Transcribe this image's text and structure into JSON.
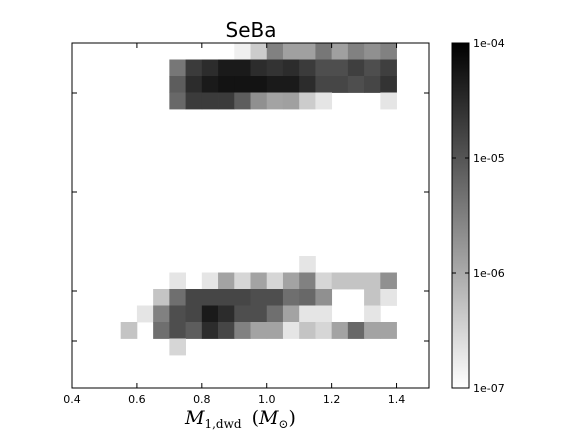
{
  "chart_data": {
    "type": "heatmap",
    "title": "SeBa",
    "xlabel": {
      "main": "M",
      "sub": "1,dwd",
      "unit_main": "M",
      "unit_sub": "⊙"
    },
    "ylabel": "",
    "xlim": [
      0.4,
      1.5
    ],
    "x_ticks": [
      0.4,
      0.6,
      0.8,
      1.0,
      1.2,
      1.4
    ],
    "x_tick_labels": [
      "0.4",
      "0.6",
      "0.8",
      "1.0",
      "1.2",
      "1.4"
    ],
    "bin_width": 0.05,
    "colorbar": {
      "scale": "log",
      "min": 1e-07,
      "max": 0.0001,
      "ticks": [
        1e-07,
        1e-06,
        1e-05,
        0.0001
      ],
      "tick_labels": [
        "1e-07",
        "1e-06",
        "1e-05",
        "1e-04"
      ],
      "low_color": "#ffffff",
      "high_color": "#000000"
    },
    "cells": [
      {
        "x0": 0.9,
        "row": 0,
        "v": 1.5e-07
      },
      {
        "x0": 0.95,
        "row": 0,
        "v": 4e-07
      },
      {
        "x0": 1.0,
        "row": 0,
        "v": 3e-06
      },
      {
        "x0": 1.05,
        "row": 0,
        "v": 1.3e-06
      },
      {
        "x0": 1.1,
        "row": 0,
        "v": 1.3e-06
      },
      {
        "x0": 1.15,
        "row": 0,
        "v": 4e-06
      },
      {
        "x0": 1.2,
        "row": 0,
        "v": 1.3e-06
      },
      {
        "x0": 1.25,
        "row": 0,
        "v": 3e-06
      },
      {
        "x0": 1.3,
        "row": 0,
        "v": 2e-06
      },
      {
        "x0": 1.35,
        "row": 0,
        "v": 3e-06
      },
      {
        "x0": 0.7,
        "row": 1,
        "v": 4e-06
      },
      {
        "x0": 0.75,
        "row": 1,
        "v": 2e-05
      },
      {
        "x0": 0.8,
        "row": 1,
        "v": 3e-05
      },
      {
        "x0": 0.85,
        "row": 1,
        "v": 5e-05
      },
      {
        "x0": 0.9,
        "row": 1,
        "v": 5e-05
      },
      {
        "x0": 0.95,
        "row": 1,
        "v": 3e-05
      },
      {
        "x0": 1.0,
        "row": 1,
        "v": 2.5e-05
      },
      {
        "x0": 1.05,
        "row": 1,
        "v": 3e-05
      },
      {
        "x0": 1.1,
        "row": 1,
        "v": 2e-05
      },
      {
        "x0": 1.15,
        "row": 1,
        "v": 1.2e-05
      },
      {
        "x0": 1.2,
        "row": 1,
        "v": 1.2e-05
      },
      {
        "x0": 1.25,
        "row": 1,
        "v": 1.8e-05
      },
      {
        "x0": 1.3,
        "row": 1,
        "v": 1.2e-05
      },
      {
        "x0": 1.35,
        "row": 1,
        "v": 1.8e-05
      },
      {
        "x0": 0.7,
        "row": 2,
        "v": 8e-06
      },
      {
        "x0": 0.75,
        "row": 2,
        "v": 3e-05
      },
      {
        "x0": 0.8,
        "row": 2,
        "v": 5e-05
      },
      {
        "x0": 0.85,
        "row": 2,
        "v": 6e-05
      },
      {
        "x0": 0.9,
        "row": 2,
        "v": 6e-05
      },
      {
        "x0": 0.95,
        "row": 2,
        "v": 6e-05
      },
      {
        "x0": 1.0,
        "row": 2,
        "v": 5e-05
      },
      {
        "x0": 1.05,
        "row": 2,
        "v": 5e-05
      },
      {
        "x0": 1.1,
        "row": 2,
        "v": 3e-05
      },
      {
        "x0": 1.15,
        "row": 2,
        "v": 1.5e-05
      },
      {
        "x0": 1.2,
        "row": 2,
        "v": 1.5e-05
      },
      {
        "x0": 1.25,
        "row": 2,
        "v": 1.2e-05
      },
      {
        "x0": 1.3,
        "row": 2,
        "v": 1.5e-05
      },
      {
        "x0": 1.35,
        "row": 2,
        "v": 2.5e-05
      },
      {
        "x0": 0.7,
        "row": 3,
        "v": 6e-06
      },
      {
        "x0": 0.75,
        "row": 3,
        "v": 2e-05
      },
      {
        "x0": 0.8,
        "row": 3,
        "v": 2e-05
      },
      {
        "x0": 0.85,
        "row": 3,
        "v": 2e-05
      },
      {
        "x0": 0.9,
        "row": 3,
        "v": 8e-06
      },
      {
        "x0": 0.95,
        "row": 3,
        "v": 2e-06
      },
      {
        "x0": 1.0,
        "row": 3,
        "v": 1.2e-06
      },
      {
        "x0": 1.05,
        "row": 3,
        "v": 1.3e-06
      },
      {
        "x0": 1.1,
        "row": 3,
        "v": 4e-07
      },
      {
        "x0": 1.15,
        "row": 3,
        "v": 2e-07
      },
      {
        "x0": 1.35,
        "row": 3,
        "v": 2e-07
      },
      {
        "x0": 1.1,
        "row": 4,
        "v": 2e-07
      },
      {
        "x0": 0.7,
        "row": 5,
        "v": 2e-07
      },
      {
        "x0": 0.8,
        "row": 5,
        "v": 2e-07
      },
      {
        "x0": 0.85,
        "row": 5,
        "v": 1.2e-06
      },
      {
        "x0": 0.9,
        "row": 5,
        "v": 3e-07
      },
      {
        "x0": 0.95,
        "row": 5,
        "v": 1.2e-06
      },
      {
        "x0": 1.0,
        "row": 5,
        "v": 3e-07
      },
      {
        "x0": 1.05,
        "row": 5,
        "v": 1.2e-06
      },
      {
        "x0": 1.1,
        "row": 5,
        "v": 3e-06
      },
      {
        "x0": 1.15,
        "row": 5,
        "v": 3e-07
      },
      {
        "x0": 1.2,
        "row": 5,
        "v": 5e-07
      },
      {
        "x0": 1.25,
        "row": 5,
        "v": 5e-07
      },
      {
        "x0": 1.3,
        "row": 5,
        "v": 5e-07
      },
      {
        "x0": 1.35,
        "row": 5,
        "v": 2e-06
      },
      {
        "x0": 0.65,
        "row": 6,
        "v": 5e-07
      },
      {
        "x0": 0.7,
        "row": 6,
        "v": 5e-06
      },
      {
        "x0": 0.75,
        "row": 6,
        "v": 1.5e-05
      },
      {
        "x0": 0.8,
        "row": 6,
        "v": 1.5e-05
      },
      {
        "x0": 0.85,
        "row": 6,
        "v": 1.5e-05
      },
      {
        "x0": 0.9,
        "row": 6,
        "v": 1.5e-05
      },
      {
        "x0": 0.95,
        "row": 6,
        "v": 1.2e-05
      },
      {
        "x0": 1.0,
        "row": 6,
        "v": 1.2e-05
      },
      {
        "x0": 1.05,
        "row": 6,
        "v": 5e-06
      },
      {
        "x0": 1.1,
        "row": 6,
        "v": 6e-06
      },
      {
        "x0": 1.15,
        "row": 6,
        "v": 2e-06
      },
      {
        "x0": 1.3,
        "row": 6,
        "v": 5e-07
      },
      {
        "x0": 1.35,
        "row": 6,
        "v": 2e-07
      },
      {
        "x0": 0.6,
        "row": 7,
        "v": 2e-07
      },
      {
        "x0": 0.65,
        "row": 7,
        "v": 3e-06
      },
      {
        "x0": 0.7,
        "row": 7,
        "v": 1.2e-05
      },
      {
        "x0": 0.75,
        "row": 7,
        "v": 1.5e-05
      },
      {
        "x0": 0.8,
        "row": 7,
        "v": 5e-05
      },
      {
        "x0": 0.85,
        "row": 7,
        "v": 3e-05
      },
      {
        "x0": 0.9,
        "row": 7,
        "v": 1.2e-05
      },
      {
        "x0": 0.95,
        "row": 7,
        "v": 1.2e-05
      },
      {
        "x0": 1.0,
        "row": 7,
        "v": 5e-06
      },
      {
        "x0": 1.05,
        "row": 7,
        "v": 1.2e-06
      },
      {
        "x0": 1.1,
        "row": 7,
        "v": 2e-07
      },
      {
        "x0": 1.15,
        "row": 7,
        "v": 2e-07
      },
      {
        "x0": 1.3,
        "row": 7,
        "v": 2e-07
      },
      {
        "x0": 0.55,
        "row": 8,
        "v": 5e-07
      },
      {
        "x0": 0.65,
        "row": 8,
        "v": 5e-06
      },
      {
        "x0": 0.7,
        "row": 8,
        "v": 1.2e-05
      },
      {
        "x0": 0.75,
        "row": 8,
        "v": 8e-06
      },
      {
        "x0": 0.8,
        "row": 8,
        "v": 3e-05
      },
      {
        "x0": 0.85,
        "row": 8,
        "v": 1.5e-05
      },
      {
        "x0": 0.9,
        "row": 8,
        "v": 3e-06
      },
      {
        "x0": 0.95,
        "row": 8,
        "v": 1.2e-06
      },
      {
        "x0": 1.0,
        "row": 8,
        "v": 1.2e-06
      },
      {
        "x0": 1.05,
        "row": 8,
        "v": 2e-07
      },
      {
        "x0": 1.1,
        "row": 8,
        "v": 5e-07
      },
      {
        "x0": 1.15,
        "row": 8,
        "v": 3e-07
      },
      {
        "x0": 1.2,
        "row": 8,
        "v": 1.2e-06
      },
      {
        "x0": 1.25,
        "row": 8,
        "v": 6e-06
      },
      {
        "x0": 1.3,
        "row": 8,
        "v": 1.2e-06
      },
      {
        "x0": 1.35,
        "row": 8,
        "v": 1.2e-06
      },
      {
        "x0": 0.7,
        "row": 9,
        "v": 3e-07
      }
    ]
  }
}
